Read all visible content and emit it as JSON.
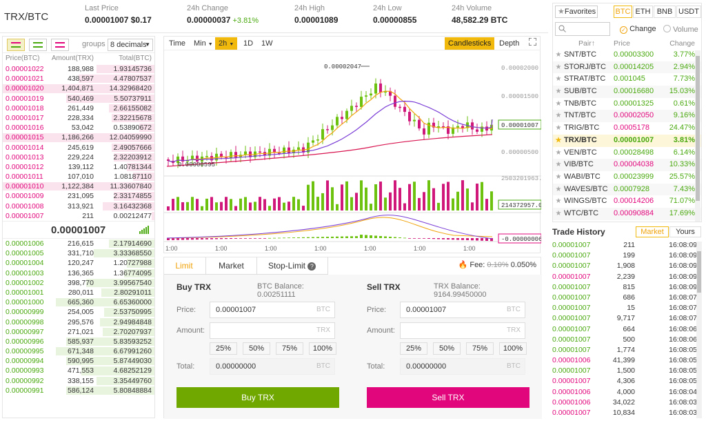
{
  "header": {
    "pair": "TRX/BTC",
    "stats": [
      {
        "label": "Last Price",
        "value": "0.00001007 $0.17",
        "cls": ""
      },
      {
        "label": "24h Change",
        "value": "0.00000037",
        "extra": "+3.81%",
        "cls": "green"
      },
      {
        "label": "24h High",
        "value": "0.00001089",
        "cls": ""
      },
      {
        "label": "24h Low",
        "value": "0.00000855",
        "cls": ""
      },
      {
        "label": "24h Volume",
        "value": "48,582.29 BTC",
        "cls": ""
      }
    ]
  },
  "orderbook": {
    "groups_label": "groups",
    "decimals": "8 decimals",
    "cols": [
      "Price(BTC)",
      "Amount(TRX)",
      "Total(BTC)"
    ],
    "asks": [
      [
        "0.00001022",
        "188,988",
        "1.93145736",
        0.38
      ],
      [
        "0.00001021",
        "438,597",
        "4.47807537",
        0.5
      ],
      [
        "0.00001020",
        "1,404,871",
        "14.32968420",
        1.0
      ],
      [
        "0.00001019",
        "540,469",
        "5.50737911",
        0.58
      ],
      [
        "0.00001018",
        "261,449",
        "2.66155082",
        0.3
      ],
      [
        "0.00001017",
        "228,334",
        "2.32215678",
        0.28
      ],
      [
        "0.00001016",
        "53,042",
        "0.53890672",
        0.1
      ],
      [
        "0.00001015",
        "1,186,266",
        "12.04059990",
        1.0
      ],
      [
        "0.00001014",
        "245,619",
        "2.49057666",
        0.28
      ],
      [
        "0.00001013",
        "229,224",
        "2.32203912",
        0.27
      ],
      [
        "0.00001012",
        "139,112",
        "1.40781344",
        0.18
      ],
      [
        "0.00001011",
        "107,010",
        "1.08187110",
        0.14
      ],
      [
        "0.00001010",
        "1,122,384",
        "11.33607840",
        1.0
      ],
      [
        "0.00001009",
        "231,095",
        "2.33174855",
        0.27
      ],
      [
        "0.00001008",
        "313,921",
        "3.16432368",
        0.34
      ],
      [
        "0.00001007",
        "211",
        "0.00212477",
        0.02
      ]
    ],
    "last": "0.00001007",
    "bids": [
      [
        "0.00001006",
        "216,615",
        "2.17914690",
        0.3
      ],
      [
        "0.00001005",
        "331,710",
        "3.33368550",
        0.4
      ],
      [
        "0.00001004",
        "120,247",
        "1.20727988",
        0.18
      ],
      [
        "0.00001003",
        "136,365",
        "1.36774095",
        0.2
      ],
      [
        "0.00001002",
        "398,770",
        "3.99567540",
        0.45
      ],
      [
        "0.00001001",
        "280,011",
        "2.80291011",
        0.35
      ],
      [
        "0.00001000",
        "665,360",
        "6.65360000",
        0.65
      ],
      [
        "0.00000999",
        "254,005",
        "2.53750995",
        0.33
      ],
      [
        "0.00000998",
        "295,576",
        "2.94984848",
        0.36
      ],
      [
        "0.00000997",
        "271,021",
        "2.70207937",
        0.34
      ],
      [
        "0.00000996",
        "585,937",
        "5.83593252",
        0.58
      ],
      [
        "0.00000995",
        "671,348",
        "6.67991260",
        0.65
      ],
      [
        "0.00000994",
        "590,995",
        "5.87449030",
        0.58
      ],
      [
        "0.00000993",
        "471,553",
        "4.68252129",
        0.48
      ],
      [
        "0.00000992",
        "338,155",
        "3.35449760",
        0.38
      ],
      [
        "0.00000991",
        "586,124",
        "5.80848884",
        0.58
      ]
    ]
  },
  "chart": {
    "tabs": [
      "Time",
      "Min",
      "2h",
      "1D",
      "1W"
    ],
    "candles_label": "Candlesticks",
    "depth_label": "Depth",
    "high_label": "0.00002047",
    "y_labels": [
      "0.00002000",
      "0.00001500",
      "0.00001007",
      "0.00000500"
    ],
    "low_label": "0.00000595",
    "vol_labels": [
      "2503201963.00",
      "214372957.00"
    ],
    "macd_label": "-0.00000006",
    "times": [
      "1:00",
      "1:00",
      "1:00",
      "1:00",
      "1:00",
      "1:00",
      "1:00"
    ]
  },
  "trade": {
    "tabs": [
      "Limit",
      "Market",
      "Stop-Limit"
    ],
    "fee_label": "Fee:",
    "fee_old": "0.10%",
    "fee_new": "0.050%",
    "buy": {
      "title": "Buy TRX",
      "balance": "BTC Balance: 0.00251111",
      "price_label": "Price:",
      "price": "0.00001007",
      "price_unit": "BTC",
      "amount_label": "Amount:",
      "amount_unit": "TRX",
      "total_label": "Total:",
      "total": "0.00000000",
      "total_unit": "BTC",
      "button": "Buy TRX"
    },
    "sell": {
      "title": "Sell TRX",
      "balance": "TRX Balance: 9164.99450000",
      "price_label": "Price:",
      "price": "0.00001007",
      "price_unit": "BTC",
      "amount_label": "Amount:",
      "amount_unit": "TRX",
      "total_label": "Total:",
      "total": "0.00000000",
      "total_unit": "BTC",
      "button": "Sell TRX"
    },
    "pcts": [
      "25%",
      "50%",
      "75%",
      "100%"
    ]
  },
  "markets": {
    "tabs": [
      "Favorites",
      "BTC",
      "ETH",
      "BNB",
      "USDT"
    ],
    "radio": [
      "Change",
      "Volume"
    ],
    "cols": [
      "Pair",
      "Price",
      "Change"
    ],
    "rows": [
      [
        "SNT/BTC",
        "0.00003300",
        "3.77%",
        "green"
      ],
      [
        "STORJ/BTC",
        "0.00014205",
        "2.94%",
        "green"
      ],
      [
        "STRAT/BTC",
        "0.001045",
        "7.73%",
        "green"
      ],
      [
        "SUB/BTC",
        "0.00016680",
        "15.03%",
        "green"
      ],
      [
        "TNB/BTC",
        "0.00001325",
        "0.61%",
        "green"
      ],
      [
        "TNT/BTC",
        "0.00002050",
        "9.16%",
        "red"
      ],
      [
        "TRIG/BTC",
        "0.0005178",
        "24.47%",
        "red"
      ],
      [
        "TRX/BTC",
        "0.00001007",
        "3.81%",
        "green"
      ],
      [
        "VEN/BTC",
        "0.00028498",
        "6.14%",
        "green"
      ],
      [
        "VIB/BTC",
        "0.00004038",
        "10.33%",
        "red"
      ],
      [
        "WABI/BTC",
        "0.00023999",
        "25.57%",
        "green"
      ],
      [
        "WAVES/BTC",
        "0.0007928",
        "7.43%",
        "green"
      ],
      [
        "WINGS/BTC",
        "0.00014206",
        "71.07%",
        "red"
      ],
      [
        "WTC/BTC",
        "0.00090884",
        "17.69%",
        "red"
      ]
    ]
  },
  "history": {
    "title": "Trade History",
    "tabs": [
      "Market",
      "Yours"
    ],
    "rows": [
      [
        "0.00001007",
        "211",
        "16:08:09",
        "green"
      ],
      [
        "0.00001007",
        "199",
        "16:08:09",
        "green"
      ],
      [
        "0.00001007",
        "1,908",
        "16:08:09",
        "green"
      ],
      [
        "0.00001007",
        "2,239",
        "16:08:09",
        "red"
      ],
      [
        "0.00001007",
        "815",
        "16:08:09",
        "green"
      ],
      [
        "0.00001007",
        "686",
        "16:08:07",
        "green"
      ],
      [
        "0.00001007",
        "15",
        "16:08:07",
        "green"
      ],
      [
        "0.00001007",
        "9,717",
        "16:08:07",
        "green"
      ],
      [
        "0.00001007",
        "664",
        "16:08:06",
        "green"
      ],
      [
        "0.00001007",
        "500",
        "16:08:06",
        "green"
      ],
      [
        "0.00001007",
        "1,774",
        "16:08:05",
        "green"
      ],
      [
        "0.00001006",
        "41,399",
        "16:08:05",
        "red"
      ],
      [
        "0.00001007",
        "1,500",
        "16:08:05",
        "green"
      ],
      [
        "0.00001007",
        "4,306",
        "16:08:05",
        "red"
      ],
      [
        "0.00001006",
        "4,000",
        "16:08:04",
        "red"
      ],
      [
        "0.00001006",
        "34,022",
        "16:08:03",
        "red"
      ],
      [
        "0.00001007",
        "10,834",
        "16:08:03",
        "red"
      ]
    ]
  }
}
